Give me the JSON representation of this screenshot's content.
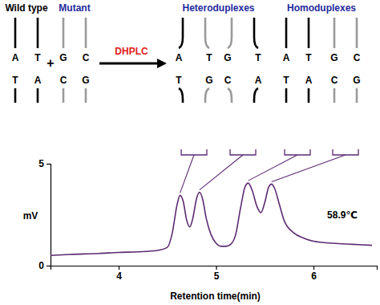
{
  "diagram": {
    "inputs": [
      {
        "label": "Wild type",
        "label_color": "#000000",
        "duplexes": [
          {
            "shape": "straight",
            "strands": [
              {
                "color": "#000000",
                "bases": [
                  "A",
                  "T"
                ]
              },
              {
                "color": "#000000",
                "bases": [
                  "T",
                  "A"
                ]
              }
            ]
          }
        ]
      },
      {
        "label": "Mutant",
        "label_color": "#1f2a9c",
        "duplexes": [
          {
            "shape": "straight",
            "strands": [
              {
                "color": "#9a9a9a",
                "bases": [
                  "G",
                  "C"
                ]
              },
              {
                "color": "#9a9a9a",
                "bases": [
                  "C",
                  "G"
                ]
              }
            ]
          }
        ]
      }
    ],
    "operator": "+",
    "method": "DHPLC",
    "outputs": [
      {
        "label": "Heteroduplexes",
        "label_color": "#1f2a9c",
        "duplexes": [
          {
            "shape": "bubble",
            "strands": [
              {
                "color": "#000000",
                "bases": [
                  "A",
                  "T"
                ]
              },
              {
                "color": "#9a9a9a",
                "bases": [
                  "T",
                  "G"
                ]
              }
            ]
          },
          {
            "shape": "bubble",
            "strands": [
              {
                "color": "#9a9a9a",
                "bases": [
                  "G",
                  "C"
                ]
              },
              {
                "color": "#000000",
                "bases": [
                  "T",
                  "A"
                ]
              }
            ]
          }
        ]
      },
      {
        "label": "Homoduplexes",
        "label_color": "#1f2a9c",
        "duplexes": [
          {
            "shape": "straight",
            "strands": [
              {
                "color": "#000000",
                "bases": [
                  "A",
                  "T"
                ]
              },
              {
                "color": "#000000",
                "bases": [
                  "T",
                  "A"
                ]
              }
            ]
          },
          {
            "shape": "straight",
            "strands": [
              {
                "color": "#9a9a9a",
                "bases": [
                  "G",
                  "C"
                ]
              },
              {
                "color": "#9a9a9a",
                "bases": [
                  "C",
                  "G"
                ]
              }
            ]
          }
        ]
      }
    ]
  },
  "chart_data": {
    "type": "line",
    "x": [
      3.3,
      3.5,
      3.8,
      4.0,
      4.2,
      4.4,
      4.5,
      4.55,
      4.6,
      4.63,
      4.66,
      4.7,
      4.73,
      4.76,
      4.8,
      4.83,
      4.86,
      4.9,
      4.95,
      5.0,
      5.05,
      5.1,
      5.15,
      5.2,
      5.25,
      5.3,
      5.33,
      5.37,
      5.42,
      5.46,
      5.5,
      5.54,
      5.57,
      5.6,
      5.65,
      5.7,
      5.8,
      5.9,
      6.0,
      6.2,
      6.4,
      6.6
    ],
    "series": [
      {
        "color": "#5c2a72",
        "values": [
          0.5,
          0.55,
          0.6,
          0.65,
          0.68,
          0.75,
          0.9,
          1.6,
          3.0,
          3.45,
          3.2,
          2.2,
          1.9,
          2.3,
          3.3,
          3.6,
          3.3,
          2.3,
          1.5,
          1.1,
          0.95,
          0.95,
          1.05,
          1.5,
          2.8,
          3.9,
          4.05,
          3.7,
          2.9,
          2.6,
          3.1,
          3.85,
          4.0,
          3.8,
          3.0,
          2.2,
          1.6,
          1.35,
          1.2,
          1.1,
          1.05,
          1.0
        ]
      }
    ],
    "xlim": [
      3.3,
      6.65
    ],
    "ylim": [
      0,
      5
    ],
    "xticks": [
      4,
      5,
      6
    ],
    "yticks": [
      0,
      5
    ],
    "x_label": "Retention time(min)",
    "y_label": "mV",
    "annotations": [
      "58.9℃"
    ]
  }
}
